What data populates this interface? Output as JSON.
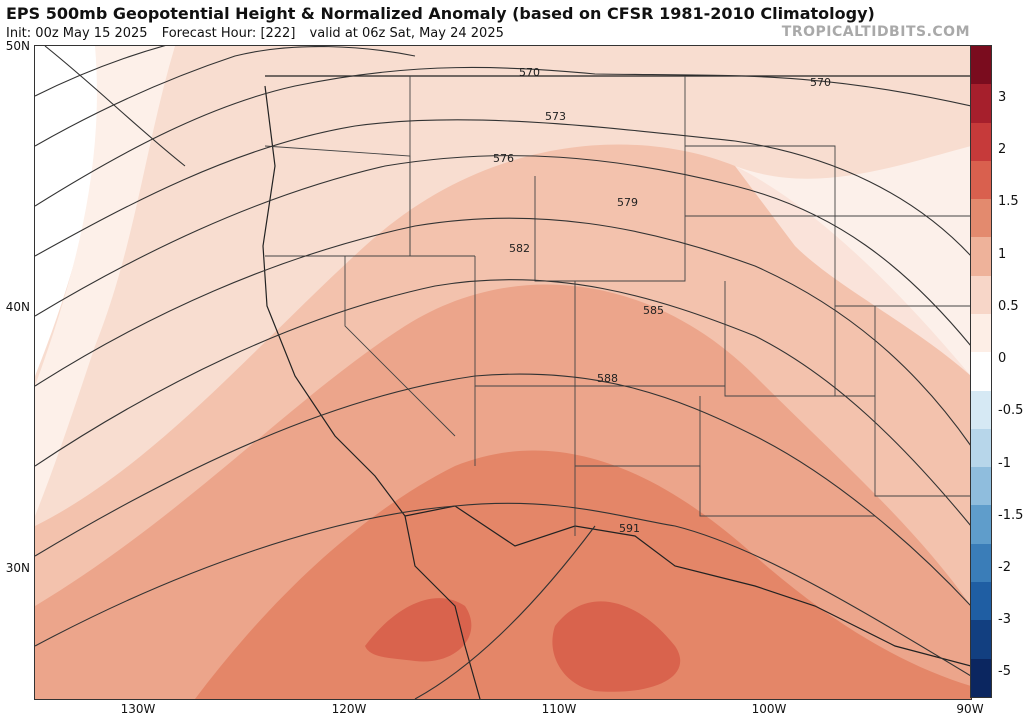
{
  "header": {
    "title": "EPS 500mb Geopotential Height & Normalized Anomaly (based on CFSR 1981-2010 Climatology)",
    "init": "Init: 00z May 15 2025",
    "forecast_hour": "Forecast Hour: [222]",
    "valid": "valid at 06z Sat, May 24 2025",
    "brand": "TROPICALTIDBITS.COM"
  },
  "axes": {
    "lat_labels": [
      "50N",
      "40N",
      "30N"
    ],
    "lon_labels": [
      "130W",
      "120W",
      "110W",
      "100W",
      "90W"
    ]
  },
  "contours": {
    "labels": [
      "570",
      "570",
      "573",
      "576",
      "579",
      "582",
      "585",
      "588",
      "591"
    ]
  },
  "colorbar": {
    "ticks": [
      "3",
      "2",
      "1.5",
      "1",
      "0.5",
      "0",
      "-0.5",
      "-1",
      "-1.5",
      "-2",
      "-3",
      "-5"
    ],
    "colors": [
      "#7a0c1e",
      "#a61f2c",
      "#c63a3a",
      "#d9604e",
      "#e38a6e",
      "#eeb29a",
      "#f7d6c8",
      "#fdeee6",
      "#ffffff",
      "#d6e9f4",
      "#b7d6ea",
      "#8fbddd",
      "#5f9dcb",
      "#3a7db8",
      "#1f5ea3",
      "#123f80",
      "#0b2660"
    ]
  }
}
